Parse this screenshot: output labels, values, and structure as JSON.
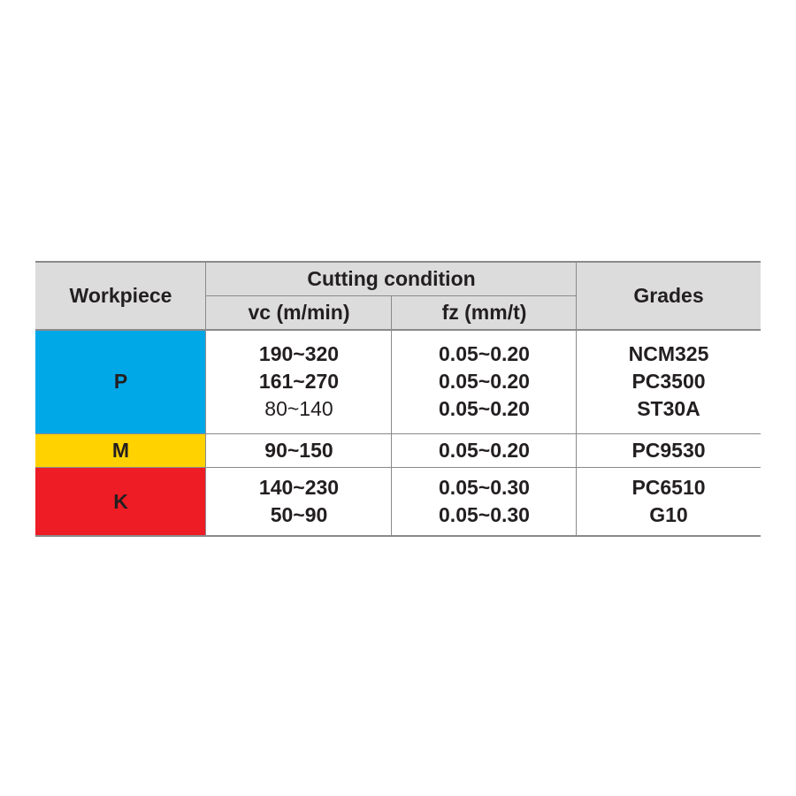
{
  "table": {
    "header": {
      "workpiece": "Workpiece",
      "cutting_condition": "Cutting condition",
      "vc": "vc (m/min)",
      "fz": "fz (mm/t)",
      "grades": "Grades"
    },
    "rows": [
      {
        "workpiece": "P",
        "vc": [
          "190~320",
          "161~270",
          "80~140"
        ],
        "fz": [
          "0.05~0.20",
          "0.05~0.20",
          "0.05~0.20"
        ],
        "grades": [
          "NCM325",
          "PC3500",
          "ST30A"
        ]
      },
      {
        "workpiece": "M",
        "vc": [
          "90~150"
        ],
        "fz": [
          "0.05~0.20"
        ],
        "grades": [
          "PC9530"
        ]
      },
      {
        "workpiece": "K",
        "vc": [
          "140~230",
          "50~90"
        ],
        "fz": [
          "0.05~0.30",
          "0.05~0.30"
        ],
        "grades": [
          "PC6510",
          "G10"
        ]
      }
    ]
  }
}
